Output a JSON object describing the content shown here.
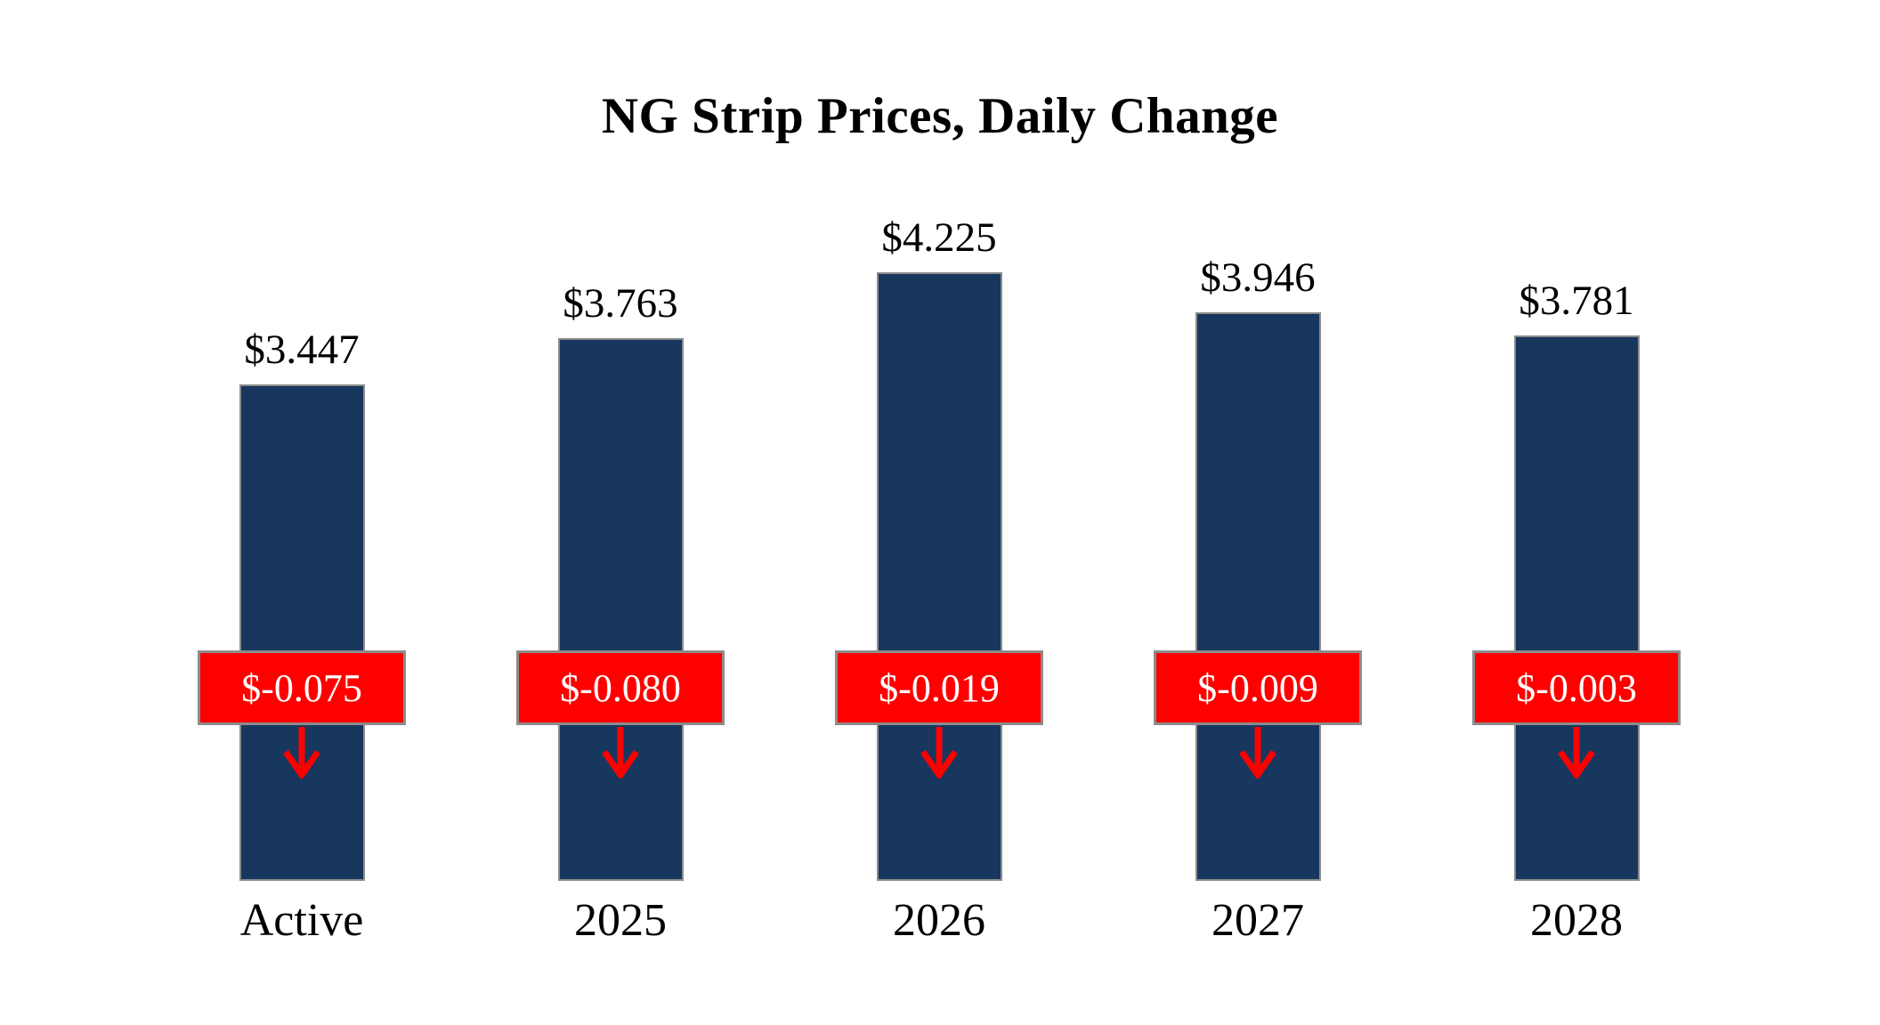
{
  "chart_data": {
    "type": "bar",
    "title": "NG Strip Prices, Daily Change",
    "categories": [
      "Active",
      "2025",
      "2026",
      "2027",
      "2028"
    ],
    "series": [
      {
        "name": "Strip Price",
        "values": [
          3.447,
          3.763,
          4.225,
          3.946,
          3.781
        ]
      },
      {
        "name": "Daily Change",
        "values": [
          -0.075,
          -0.08,
          -0.019,
          -0.009,
          -0.003
        ]
      }
    ],
    "value_labels": [
      "$3.447",
      "$3.763",
      "$4.225",
      "$3.946",
      "$3.781"
    ],
    "change_labels": [
      "$-0.075",
      "$-0.080",
      "$-0.019",
      "$-0.009",
      "$-0.003"
    ],
    "baseline": 0,
    "axes_visible": false,
    "grid": false,
    "legend": "none",
    "bar_color": "#17375E",
    "border_color": "#8C8C8C",
    "change_box_color": "#FF0000",
    "change_text_color": "#FFFFFF",
    "arrow": "down"
  }
}
